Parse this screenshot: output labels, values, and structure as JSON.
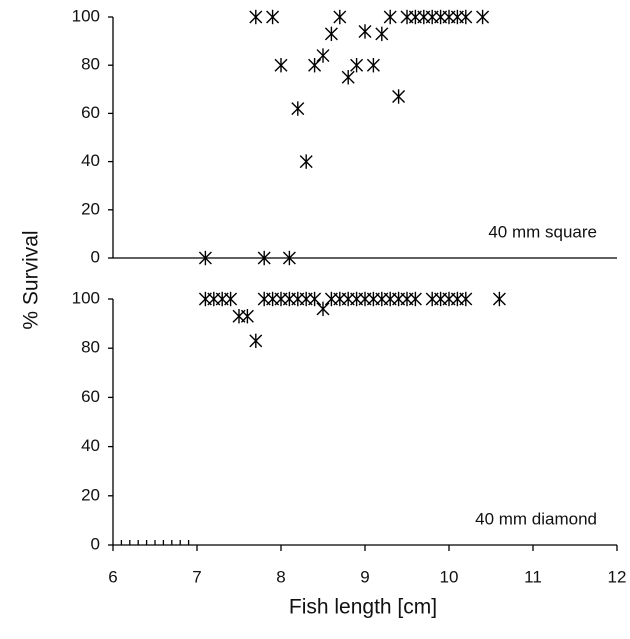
{
  "chart_data": [
    {
      "type": "scatter",
      "ylabel": "% Survival",
      "annotation": "40 mm square",
      "color": "#000000",
      "xlim": [
        6,
        12
      ],
      "ylim": [
        0,
        100
      ],
      "yticks": [
        0,
        20,
        40,
        60,
        80,
        100
      ],
      "x": [
        7.1,
        7.7,
        7.8,
        7.9,
        8.0,
        8.1,
        8.2,
        8.3,
        8.4,
        8.5,
        8.6,
        8.7,
        8.8,
        8.9,
        9.0,
        9.1,
        9.2,
        9.3,
        9.4,
        9.5,
        9.6,
        9.7,
        9.8,
        9.9,
        10.0,
        10.1,
        10.2,
        10.4
      ],
      "values": [
        0,
        100,
        0,
        100,
        80,
        0,
        62,
        40,
        80,
        84,
        93,
        100,
        75,
        80,
        94,
        80,
        93,
        100,
        67,
        100,
        100,
        100,
        100,
        100,
        100,
        100,
        100,
        100
      ]
    },
    {
      "type": "scatter",
      "xlabel": "Fish length [cm]",
      "annotation": "40 mm diamond",
      "color": "#000000",
      "xlim": [
        6,
        12
      ],
      "xticks": [
        6,
        7,
        8,
        9,
        10,
        11,
        12
      ],
      "xminorticks": [
        6.1,
        6.2,
        6.3,
        6.4,
        6.5,
        6.6,
        6.7,
        6.8,
        6.9
      ],
      "ylim": [
        0,
        100
      ],
      "yticks": [
        0,
        20,
        40,
        60,
        80,
        100
      ],
      "x": [
        7.1,
        7.2,
        7.3,
        7.4,
        7.5,
        7.6,
        7.7,
        7.8,
        7.9,
        8.0,
        8.1,
        8.2,
        8.3,
        8.4,
        8.5,
        8.6,
        8.7,
        8.8,
        8.9,
        9.0,
        9.1,
        9.2,
        9.3,
        9.4,
        9.5,
        9.6,
        9.8,
        9.9,
        10.0,
        10.1,
        10.2,
        10.6
      ],
      "values": [
        100,
        100,
        100,
        100,
        93,
        93,
        83,
        100,
        100,
        100,
        100,
        100,
        100,
        100,
        96,
        100,
        100,
        100,
        100,
        100,
        100,
        100,
        100,
        100,
        100,
        100,
        100,
        100,
        100,
        100,
        100,
        100
      ]
    }
  ]
}
